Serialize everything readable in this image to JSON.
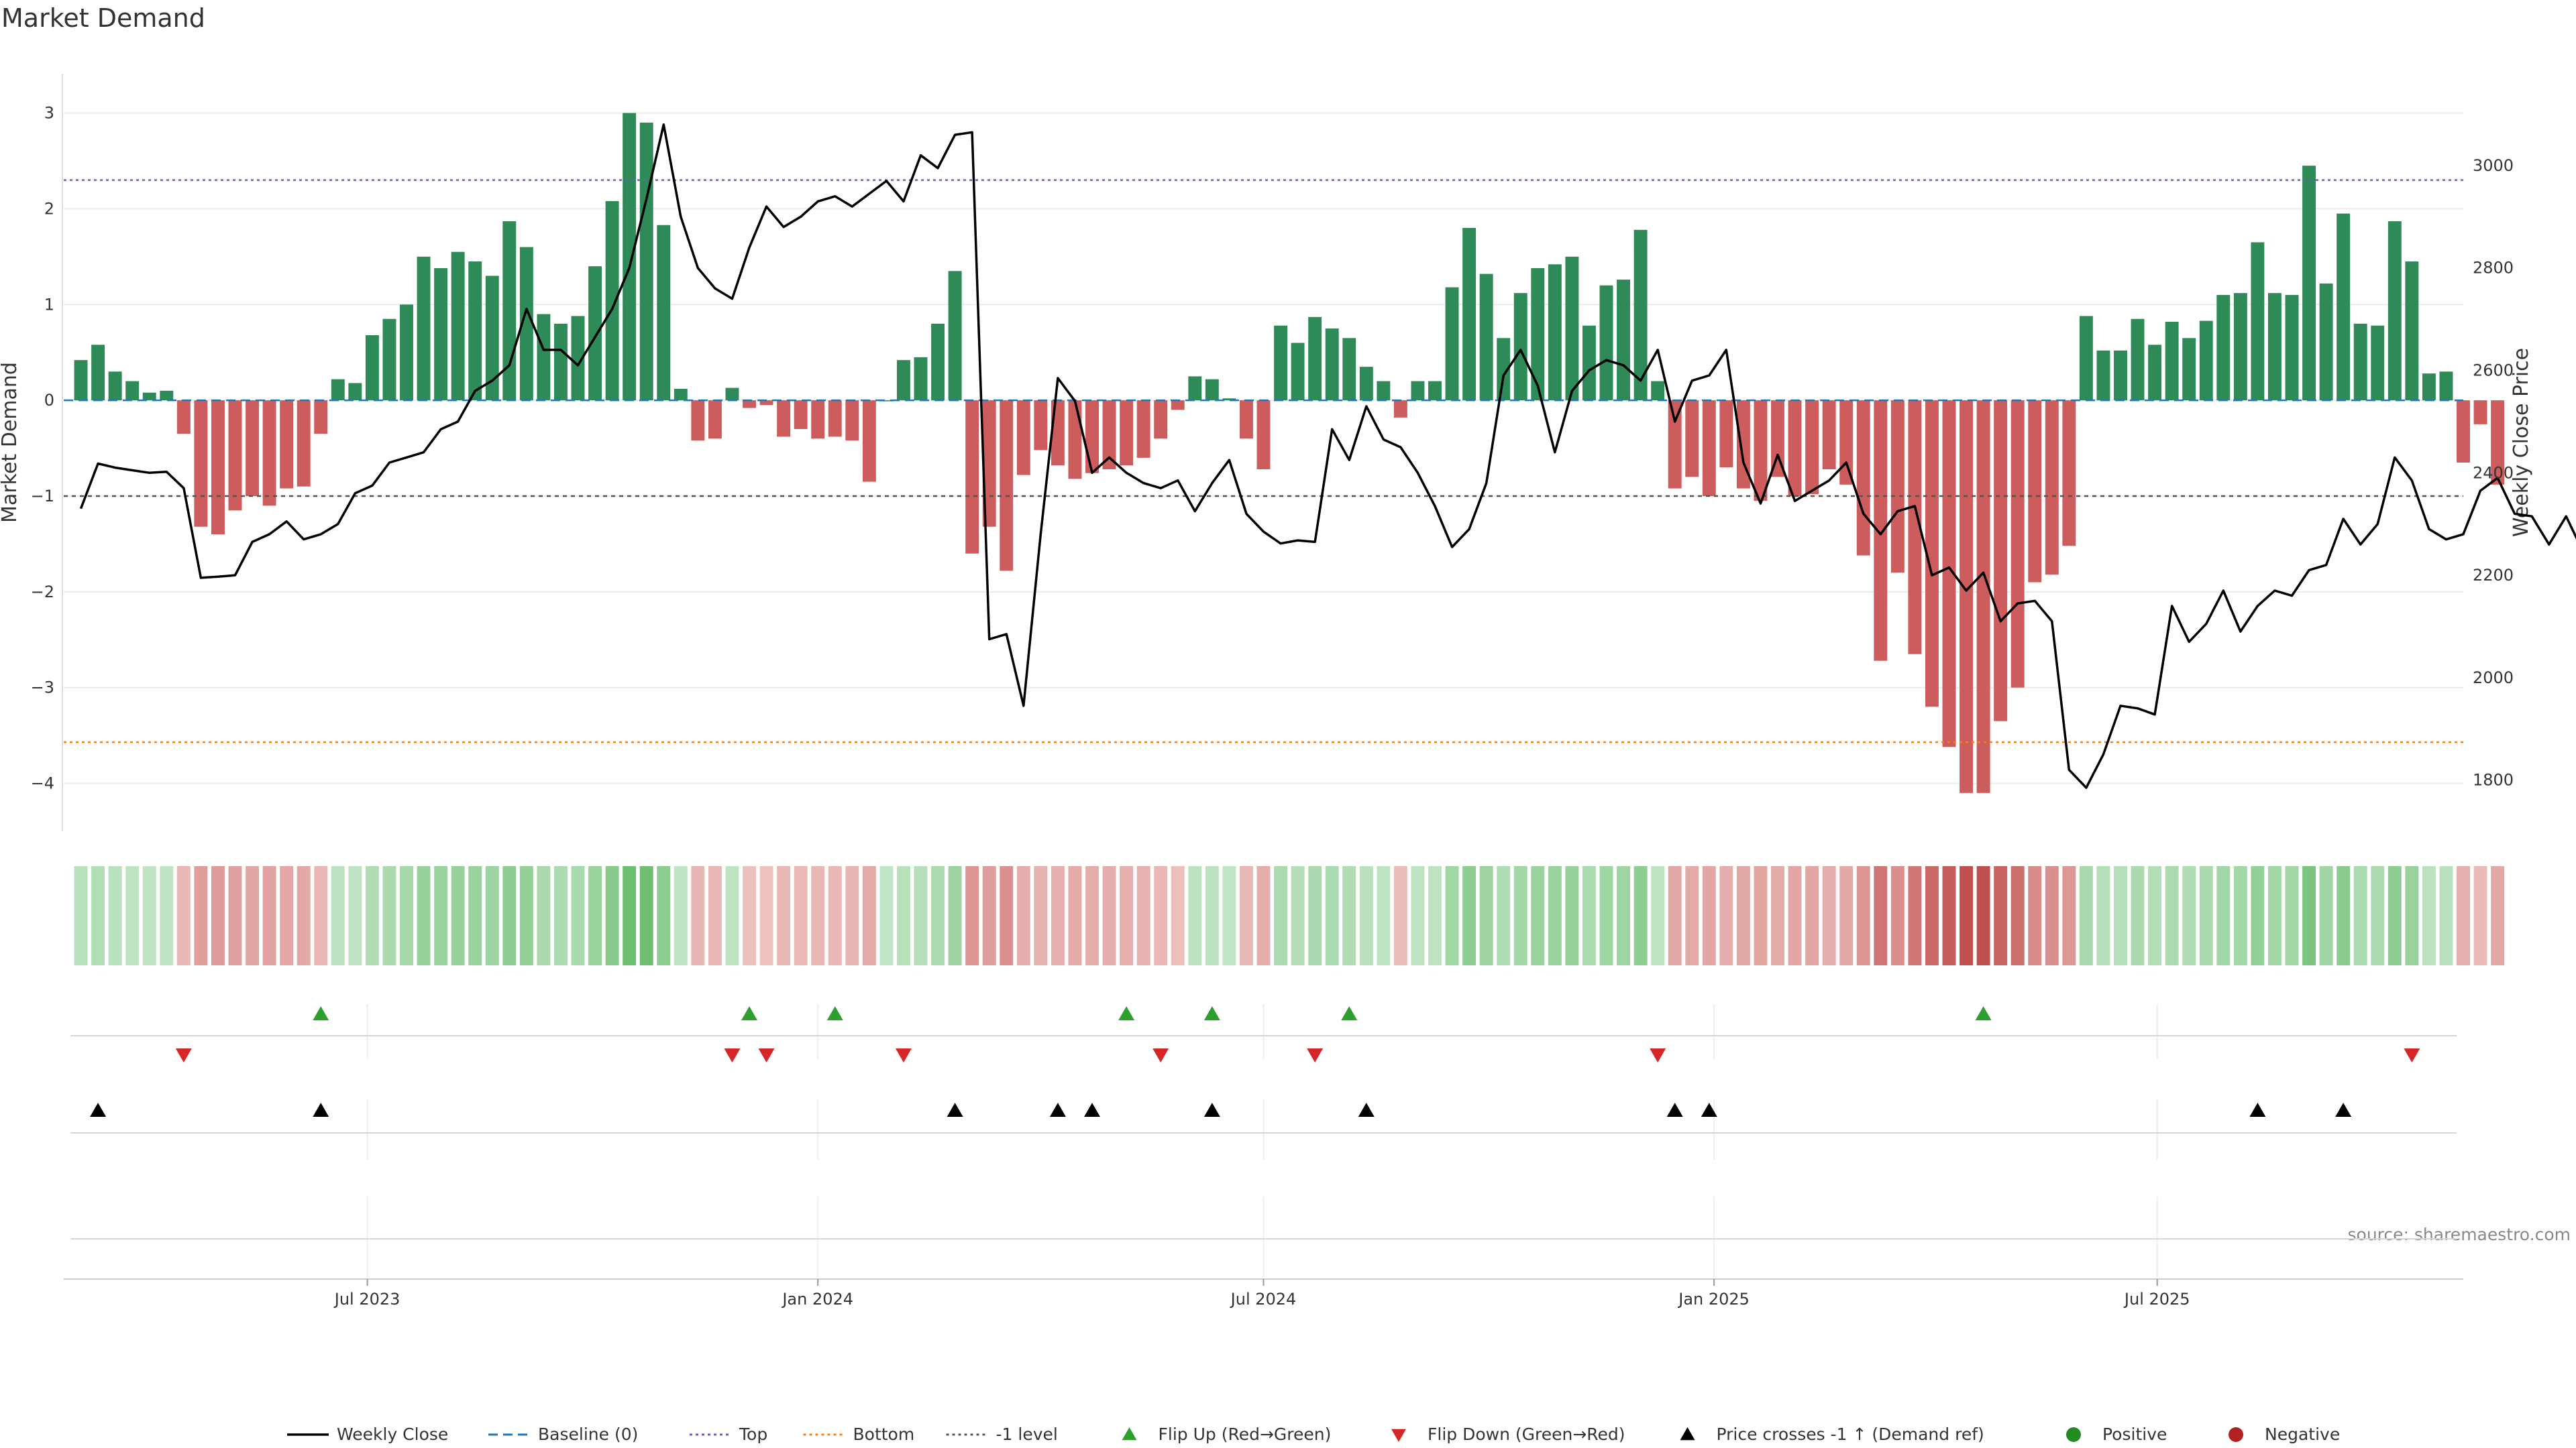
{
  "chart_data": {
    "type": "bar",
    "title": "Market Demand",
    "ylabel": "Market Demand",
    "y2label": "Weekly Close Price",
    "source": "source: sharemaestro.com",
    "ylim": [
      -4.5,
      3.2
    ],
    "y2lim": [
      1700,
      3140
    ],
    "yticks": [
      -4,
      -3,
      -2,
      -1,
      0,
      1,
      2,
      3
    ],
    "y2ticks": [
      1800,
      2000,
      2200,
      2400,
      2600,
      2800,
      3000
    ],
    "x_start": "2023-03-06",
    "x_end": "2025-10-27",
    "x_domain": [
      "2023-02-27",
      "2025-11-03"
    ],
    "xticks": [
      {
        "date": "2023-07-01",
        "label": "Jul 2023"
      },
      {
        "date": "2024-01-01",
        "label": "Jan 2024"
      },
      {
        "date": "2024-07-01",
        "label": "Jul 2024"
      },
      {
        "date": "2025-01-01",
        "label": "Jan 2025"
      },
      {
        "date": "2025-07-01",
        "label": "Jul 2025"
      }
    ],
    "levels": {
      "top": 2.3,
      "bottom": -3.57,
      "minus_one": -1
    },
    "demand": [
      0.42,
      0.58,
      0.3,
      0.2,
      0.08,
      0.1,
      -0.35,
      -1.32,
      -1.4,
      -1.15,
      -1.0,
      -1.1,
      -0.92,
      -0.9,
      -0.35,
      0.22,
      0.18,
      0.68,
      0.85,
      1.0,
      1.5,
      1.38,
      1.55,
      1.45,
      1.3,
      1.87,
      1.6,
      0.9,
      0.8,
      0.88,
      1.4,
      2.08,
      3.0,
      2.9,
      1.83,
      0.12,
      -0.42,
      -0.4,
      0.13,
      -0.08,
      -0.05,
      -0.38,
      -0.3,
      -0.4,
      -0.38,
      -0.42,
      -0.85,
      0.0,
      0.42,
      0.45,
      0.8,
      1.35,
      -1.6,
      -1.32,
      -1.78,
      -0.78,
      -0.52,
      -0.68,
      -0.82,
      -0.76,
      -0.72,
      -0.68,
      -0.6,
      -0.4,
      -0.1,
      0.25,
      0.22,
      0.02,
      -0.4,
      -0.72,
      0.78,
      0.6,
      0.87,
      0.75,
      0.65,
      0.35,
      0.2,
      -0.18,
      0.2,
      0.2,
      1.18,
      1.8,
      1.32,
      0.65,
      1.12,
      1.38,
      1.42,
      1.5,
      0.78,
      1.2,
      1.26,
      1.78,
      0.2,
      -0.92,
      -0.8,
      -1.0,
      -0.7,
      -0.92,
      -1.05,
      -0.8,
      -1.0,
      -0.98,
      -0.72,
      -0.88,
      -1.62,
      -2.72,
      -1.8,
      -2.65,
      -3.2,
      -3.62,
      -4.1,
      -4.1,
      -3.35,
      -3.0,
      -1.9,
      -1.82,
      -1.52,
      0.88,
      0.52,
      0.52,
      0.85,
      0.58,
      0.82,
      0.65,
      0.83,
      1.1,
      1.12,
      1.65,
      1.12,
      1.1,
      2.45,
      1.22,
      1.95,
      0.8,
      0.78,
      1.87,
      1.45,
      0.28,
      0.3,
      -0.65,
      -0.25,
      -0.88
    ],
    "price": [
      2330,
      2418,
      2410,
      2405,
      2400,
      2402,
      2370,
      2195,
      2197,
      2200,
      2265,
      2280,
      2305,
      2270,
      2280,
      2300,
      2360,
      2375,
      2420,
      2430,
      2440,
      2485,
      2500,
      2560,
      2580,
      2610,
      2720,
      2640,
      2640,
      2610,
      2665,
      2720,
      2800,
      2935,
      3080,
      2900,
      2800,
      2760,
      2740,
      2840,
      2920,
      2880,
      2900,
      2930,
      2940,
      2920,
      2945,
      2970,
      2930,
      3020,
      2995,
      3060,
      3065,
      2075,
      2085,
      1945,
      2280,
      2585,
      2540,
      2400,
      2430,
      2400,
      2380,
      2370,
      2385,
      2325,
      2380,
      2425,
      2320,
      2285,
      2262,
      2268,
      2265,
      2485,
      2425,
      2530,
      2465,
      2450,
      2400,
      2335,
      2255,
      2290,
      2380,
      2590,
      2640,
      2570,
      2440,
      2560,
      2600,
      2620,
      2610,
      2580,
      2640,
      2500,
      2580,
      2590,
      2640,
      2420,
      2340,
      2435,
      2345,
      2365,
      2385,
      2420,
      2320,
      2280,
      2325,
      2335,
      2200,
      2215,
      2170,
      2205,
      2110,
      2145,
      2150,
      2110,
      1820,
      1785,
      1850,
      1945,
      1940,
      1928,
      2140,
      2070,
      2105,
      2170,
      2090,
      2140,
      2170,
      2160,
      2210,
      2220,
      2310,
      2260,
      2300,
      2430,
      2385,
      2290,
      2270,
      2280,
      2365,
      2390,
      2320,
      2315,
      2260,
      2315,
      2245
    ],
    "flip_up_dates": [
      "2023-06-12",
      "2023-12-04",
      "2024-01-08",
      "2024-05-06",
      "2024-06-10",
      "2024-08-05",
      "2025-04-21"
    ],
    "flip_down_dates": [
      "2023-04-17",
      "2023-11-27",
      "2023-12-11",
      "2024-02-05",
      "2024-05-20",
      "2024-07-22",
      "2024-12-09",
      "2025-10-13"
    ],
    "price_cross_dates": [
      "2023-03-13",
      "2023-06-12",
      "2024-02-26",
      "2024-04-08",
      "2024-04-22",
      "2024-06-10",
      "2024-08-12",
      "2024-12-16",
      "2024-12-30",
      "2025-08-11",
      "2025-09-15"
    ],
    "colors": {
      "green": "#2e8b57",
      "red": "#cd5c5c",
      "price_line": "#000000",
      "baseline": "#1f77b4",
      "top": "#6a5acd",
      "bottom": "#ff7f0e",
      "minus_one": "#555555",
      "flip_up": "#2ca02c",
      "flip_down": "#d62728",
      "positive": "#228b22",
      "negative": "#b22222"
    },
    "legend": [
      {
        "label": "Weekly Close",
        "kind": "line",
        "color": "#000000"
      },
      {
        "label": "Baseline (0)",
        "kind": "dash",
        "color": "#1f77b4"
      },
      {
        "label": "Top",
        "kind": "dot",
        "color": "#6a5acd"
      },
      {
        "label": "Bottom",
        "kind": "dot",
        "color": "#ff7f0e"
      },
      {
        "label": "-1 level",
        "kind": "dot",
        "color": "#555555"
      },
      {
        "label": "Flip Up (Red→Green)",
        "kind": "tri-up",
        "color": "#2ca02c"
      },
      {
        "label": "Flip Down (Green→Red)",
        "kind": "tri-down",
        "color": "#d62728"
      },
      {
        "label": "Price crosses -1 ↑ (Demand ref)",
        "kind": "tri-up",
        "color": "#000000"
      },
      {
        "label": "Positive",
        "kind": "circle",
        "color": "#228b22"
      },
      {
        "label": "Negative",
        "kind": "circle",
        "color": "#b22222"
      }
    ]
  }
}
